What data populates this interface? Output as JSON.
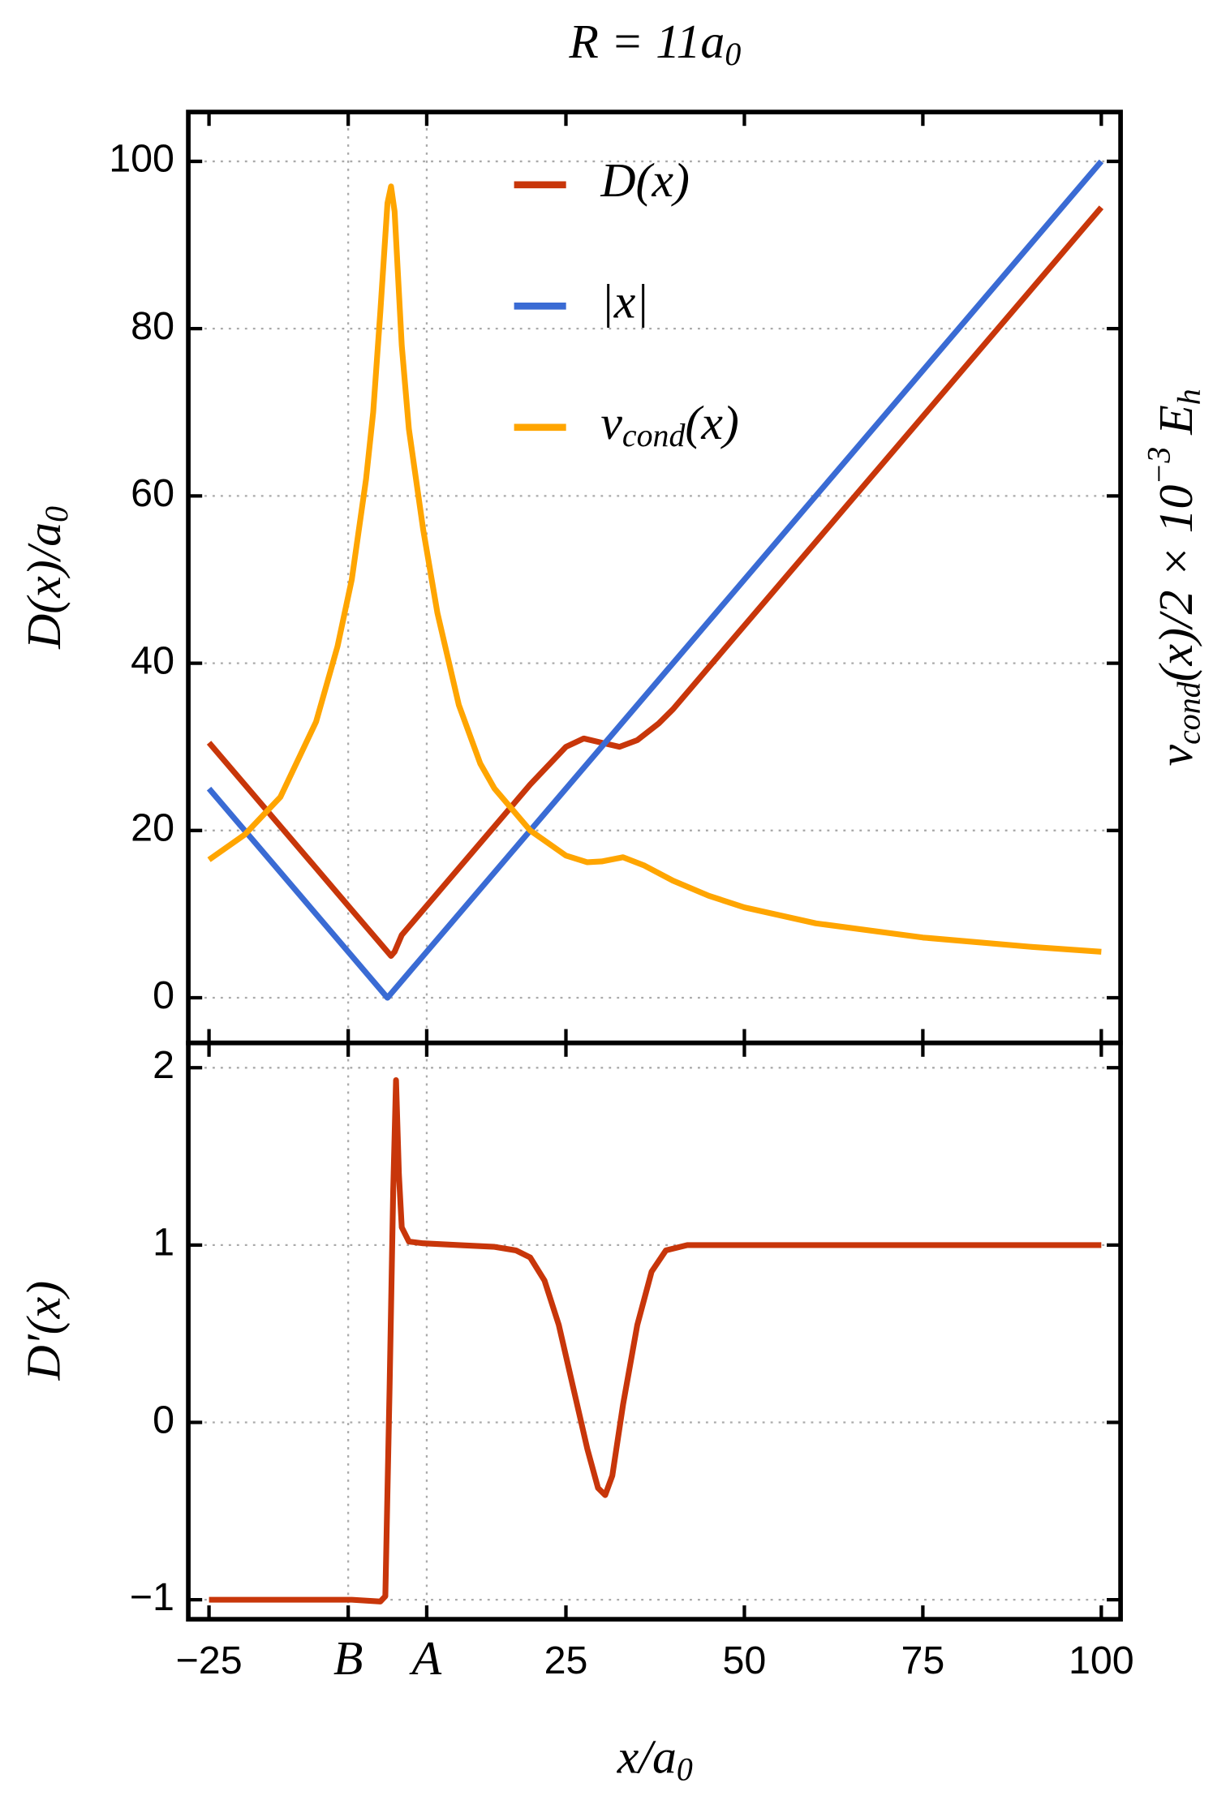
{
  "chart_data": [
    {
      "type": "line",
      "title": [
        "R = 11a",
        "0"
      ],
      "ylabel": [
        "D(x)/a",
        "0"
      ],
      "y2label": [
        "v",
        "cond",
        "(x)/2 × 10",
        "−3",
        " E",
        "h"
      ],
      "ylim": [
        -5.4,
        105.9
      ],
      "yticks": [
        0,
        20,
        40,
        60,
        80,
        100
      ],
      "y2lim": [
        -5.4,
        105.9
      ],
      "grid": true,
      "legend": "top",
      "series": [
        {
          "name": [
            "D(x)"
          ],
          "color": "#c8360a",
          "x": [
            -25,
            -20,
            -10,
            -5,
            -1,
            0.5,
            1,
            1.5,
            2,
            5,
            10,
            15,
            20,
            25,
            27.5,
            30,
            32.5,
            35,
            38,
            40,
            45,
            50,
            75,
            100
          ],
          "values": [
            30.5,
            25.5,
            15.5,
            10.5,
            6.5,
            5,
            5.5,
            6.5,
            7.5,
            10.5,
            15.5,
            20.5,
            25.5,
            30,
            31,
            30.5,
            30,
            30.8,
            32.8,
            34.5,
            39.5,
            44.5,
            69.5,
            94.5
          ]
        },
        {
          "name": [
            "|x|"
          ],
          "color": "#3a6bd4",
          "x": [
            -25,
            0,
            100
          ],
          "values": [
            25,
            0,
            100
          ]
        },
        {
          "name": [
            "v",
            "cond",
            "(x)"
          ],
          "color": "#ffa500",
          "axis": "y2",
          "x": [
            -25,
            -20,
            -15,
            -10,
            -7,
            -5,
            -3,
            -2,
            -1,
            0,
            0.5,
            1,
            2,
            3,
            5,
            7,
            10,
            13,
            15,
            20,
            25,
            28,
            30,
            33,
            36,
            40,
            45,
            50,
            60,
            75,
            90,
            100
          ],
          "values": [
            16.5,
            19.5,
            24,
            33,
            42,
            50,
            62,
            70,
            82,
            95,
            97,
            94,
            78,
            68,
            56,
            46,
            35,
            28,
            25,
            20,
            17,
            16.2,
            16.3,
            16.8,
            15.8,
            14,
            12.2,
            10.8,
            8.9,
            7.2,
            6.1,
            5.5
          ]
        }
      ]
    },
    {
      "type": "line",
      "ylabel": "D′(x)",
      "xlabel": [
        "x/a",
        "0"
      ],
      "xlim": [
        -27.9,
        102.7
      ],
      "xticks": [
        {
          "value": -25,
          "label": "−25"
        },
        {
          "value": -5.5,
          "label": "B",
          "grid": true
        },
        {
          "value": 5.5,
          "label": "A",
          "grid": true
        },
        25,
        50,
        75,
        100
      ],
      "ylim": [
        -1.11,
        2.14
      ],
      "yticks": [
        {
          "value": -1,
          "label": "−1"
        },
        0,
        1,
        2
      ],
      "grid": true,
      "series": [
        {
          "name": [
            "D′(x)"
          ],
          "color": "#c8360a",
          "x": [
            -25,
            -5,
            -1,
            -0.3,
            0.3,
            0.8,
            1.2,
            1.6,
            2,
            3,
            5,
            10,
            15,
            18,
            20,
            22,
            24,
            26,
            28,
            29.5,
            30.5,
            31.5,
            33,
            35,
            37,
            39,
            42,
            100
          ],
          "values": [
            -1,
            -1,
            -1.01,
            -0.98,
            0.2,
            1.3,
            1.93,
            1.4,
            1.1,
            1.02,
            1.01,
            1,
            0.99,
            0.97,
            0.93,
            0.8,
            0.55,
            0.2,
            -0.15,
            -0.37,
            -0.41,
            -0.3,
            0.1,
            0.55,
            0.85,
            0.97,
            1,
            1
          ]
        }
      ]
    }
  ]
}
